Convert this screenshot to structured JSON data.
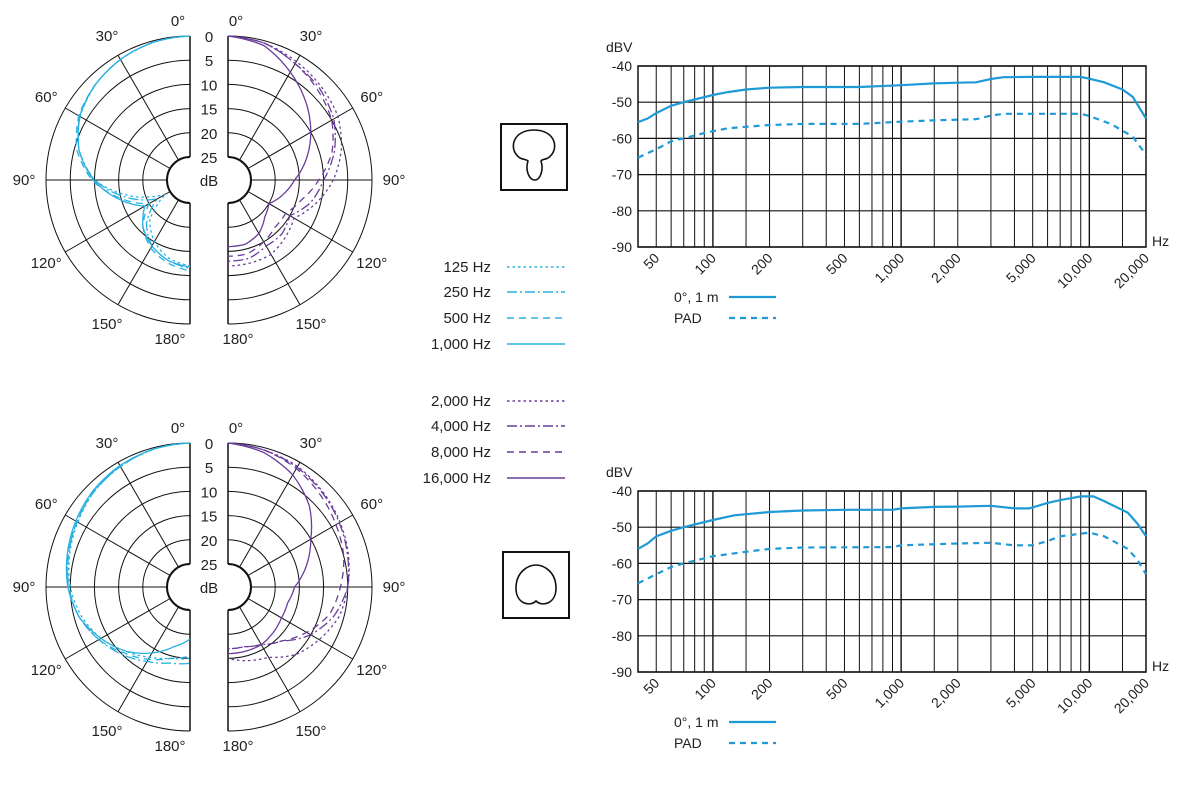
{
  "chart_data": [
    {
      "type": "polar",
      "pattern": "supercardioid",
      "angle_labels": [
        "0°",
        "30°",
        "60°",
        "90°",
        "120°",
        "150°",
        "180°"
      ],
      "radial_labels": [
        "0",
        "5",
        "10",
        "15",
        "20",
        "25"
      ],
      "radial_unit": "dB",
      "angles_deg": [
        0,
        15,
        30,
        45,
        60,
        75,
        90,
        105,
        120,
        135,
        150,
        165,
        180
      ],
      "series": [
        {
          "name": "125 Hz",
          "side": "left",
          "color": "#29b1e0",
          "style": "dotted",
          "attenuation_db": [
            0,
            0.3,
            1,
            2,
            3.5,
            6,
            10,
            17,
            24,
            18,
            15,
            13,
            12
          ]
        },
        {
          "name": "250 Hz",
          "side": "left",
          "color": "#29b1e0",
          "style": "dash-dot",
          "attenuation_db": [
            0,
            0.3,
            1,
            2,
            3.5,
            6,
            10,
            16,
            22,
            17,
            14,
            12.5,
            11.5
          ]
        },
        {
          "name": "500 Hz",
          "side": "left",
          "color": "#29b1e0",
          "style": "dashed",
          "attenuation_db": [
            0,
            0.3,
            1,
            2,
            3.2,
            5.5,
            9.5,
            15,
            20,
            16,
            13.5,
            12,
            11
          ]
        },
        {
          "name": "1,000 Hz",
          "side": "left",
          "color": "#29b1e0",
          "style": "solid",
          "attenuation_db": [
            0,
            0.3,
            1,
            2,
            3.4,
            6,
            9.8,
            14.5,
            19,
            16,
            14,
            12.5,
            11.8
          ]
        },
        {
          "name": "2,000 Hz",
          "side": "right",
          "color": "#6a3d9a",
          "style": "dotted",
          "attenuation_db": [
            0,
            0.5,
            1.5,
            2.5,
            3.5,
            5.5,
            8,
            11,
            14,
            13,
            12,
            12,
            12
          ]
        },
        {
          "name": "4,000 Hz",
          "side": "right",
          "color": "#6a3d9a",
          "style": "dash-dot",
          "attenuation_db": [
            0,
            0.5,
            2,
            3,
            4.5,
            7,
            10,
            12,
            15,
            14,
            14,
            13,
            13
          ]
        },
        {
          "name": "8,000 Hz",
          "side": "right",
          "color": "#6a3d9a",
          "style": "dashed",
          "attenuation_db": [
            0,
            0.5,
            2,
            3.5,
            5,
            7.5,
            11,
            14,
            16,
            16,
            15,
            14,
            14
          ]
        },
        {
          "name": "16,000 Hz",
          "side": "right",
          "color": "#6a3d9a",
          "style": "solid",
          "attenuation_db": [
            0,
            1,
            4,
            7,
            10,
            13,
            16,
            18,
            20,
            19,
            17,
            16,
            16
          ]
        }
      ]
    },
    {
      "type": "polar",
      "pattern": "cardioid",
      "angle_labels": [
        "0°",
        "30°",
        "60°",
        "90°",
        "120°",
        "150°",
        "180°"
      ],
      "radial_labels": [
        "0",
        "5",
        "10",
        "15",
        "20",
        "25"
      ],
      "radial_unit": "dB",
      "angles_deg": [
        0,
        15,
        30,
        45,
        60,
        75,
        90,
        105,
        120,
        135,
        150,
        165,
        180
      ],
      "series": [
        {
          "name": "125 Hz",
          "side": "left",
          "color": "#29b1e0",
          "style": "dotted",
          "attenuation_db": [
            0,
            0.3,
            1,
            1.8,
            3,
            4,
            5,
            6.5,
            8.5,
            11,
            13,
            14.5,
            15
          ]
        },
        {
          "name": "250 Hz",
          "side": "left",
          "color": "#29b1e0",
          "style": "dash-dot",
          "attenuation_db": [
            0,
            0.3,
            1,
            1.8,
            2.8,
            3.8,
            4.7,
            6,
            8,
            10,
            12,
            13.5,
            14
          ]
        },
        {
          "name": "500 Hz",
          "side": "left",
          "color": "#29b1e0",
          "style": "dashed",
          "attenuation_db": [
            0,
            0.3,
            1,
            1.7,
            2.8,
            3.7,
            4.6,
            6,
            8,
            10.5,
            12.5,
            14.5,
            15.5
          ]
        },
        {
          "name": "1,000 Hz",
          "side": "left",
          "color": "#29b1e0",
          "style": "solid",
          "attenuation_db": [
            0,
            0.3,
            0.8,
            1.5,
            2.5,
            3.5,
            4.5,
            6,
            8.5,
            11,
            14,
            17,
            19
          ]
        },
        {
          "name": "2,000 Hz",
          "side": "right",
          "color": "#6a3d9a",
          "style": "dotted",
          "attenuation_db": [
            0,
            0.5,
            1,
            2,
            3,
            4,
            5,
            6,
            8,
            10,
            13,
            14,
            15
          ]
        },
        {
          "name": "4,000 Hz",
          "side": "right",
          "color": "#6a3d9a",
          "style": "dash-dot",
          "attenuation_db": [
            0,
            0.5,
            1.2,
            2.2,
            3.2,
            4.2,
            5,
            7,
            10,
            14,
            16,
            17,
            17
          ]
        },
        {
          "name": "8,000 Hz",
          "side": "right",
          "color": "#6a3d9a",
          "style": "dashed",
          "attenuation_db": [
            0,
            0.5,
            1.5,
            2.8,
            4,
            5,
            6.5,
            8,
            11,
            14,
            16,
            17,
            17
          ]
        },
        {
          "name": "16,000 Hz",
          "side": "right",
          "color": "#6a3d9a",
          "style": "solid",
          "attenuation_db": [
            0,
            1,
            3,
            6,
            10,
            13,
            16,
            17,
            17,
            16.5,
            16,
            16,
            16
          ]
        }
      ]
    },
    {
      "type": "line",
      "pattern": "supercardioid",
      "ylabel": "dBV",
      "xlabel": "Hz",
      "xscale": "log",
      "xlim": [
        40,
        20000
      ],
      "ylim": [
        -90,
        -40
      ],
      "yticks": [
        "-40",
        "-50",
        "-60",
        "-70",
        "-80",
        "-90"
      ],
      "xticks": [
        50,
        100,
        200,
        500,
        1000,
        2000,
        5000,
        10000,
        20000
      ],
      "xtick_labels": [
        "50",
        "100",
        "200",
        "500",
        "1,000",
        "2,000",
        "5,000",
        "10,000",
        "20,000"
      ],
      "grid": true,
      "series": [
        {
          "name": "0°, 1 m",
          "color": "#1f9ad6",
          "style": "solid",
          "points": [
            [
              40,
              -55.5
            ],
            [
              45,
              -54.5
            ],
            [
              50,
              -53
            ],
            [
              60,
              -51
            ],
            [
              70,
              -50
            ],
            [
              100,
              -48
            ],
            [
              120,
              -47.2
            ],
            [
              150,
              -46.5
            ],
            [
              200,
              -46
            ],
            [
              300,
              -45.8
            ],
            [
              600,
              -45.8
            ],
            [
              1000,
              -45.3
            ],
            [
              1500,
              -44.8
            ],
            [
              2000,
              -44.6
            ],
            [
              2500,
              -44.5
            ],
            [
              3000,
              -43.6
            ],
            [
              3500,
              -43.1
            ],
            [
              5000,
              -43
            ],
            [
              9000,
              -43
            ],
            [
              10000,
              -43.5
            ],
            [
              12000,
              -44.5
            ],
            [
              15000,
              -46.5
            ],
            [
              17000,
              -48.5
            ],
            [
              20000,
              -54.5
            ]
          ]
        },
        {
          "name": "PAD",
          "color": "#1f9ad6",
          "style": "dashed",
          "points": [
            [
              40,
              -65.3
            ],
            [
              50,
              -63
            ],
            [
              60,
              -60.8
            ],
            [
              70,
              -60
            ],
            [
              90,
              -58.5
            ],
            [
              100,
              -58
            ],
            [
              120,
              -57.2
            ],
            [
              150,
              -56.8
            ],
            [
              200,
              -56.3
            ],
            [
              300,
              -56
            ],
            [
              600,
              -56
            ],
            [
              1000,
              -55.4
            ],
            [
              1500,
              -55
            ],
            [
              2500,
              -54.7
            ],
            [
              3000,
              -53.7
            ],
            [
              3500,
              -53.2
            ],
            [
              9000,
              -53.2
            ],
            [
              10000,
              -53.8
            ],
            [
              13000,
              -56
            ],
            [
              17000,
              -59.5
            ],
            [
              20000,
              -64.5
            ]
          ]
        }
      ]
    },
    {
      "type": "line",
      "pattern": "cardioid",
      "ylabel": "dBV",
      "xlabel": "Hz",
      "xscale": "log",
      "xlim": [
        40,
        20000
      ],
      "ylim": [
        -90,
        -40
      ],
      "yticks": [
        "-40",
        "-50",
        "-60",
        "-70",
        "-80",
        "-90"
      ],
      "xticks": [
        50,
        100,
        200,
        500,
        1000,
        2000,
        5000,
        10000,
        20000
      ],
      "xtick_labels": [
        "50",
        "100",
        "200",
        "500",
        "1,000",
        "2,000",
        "5,000",
        "10,000",
        "20,000"
      ],
      "grid": true,
      "series": [
        {
          "name": "0°, 1 m",
          "color": "#1f9ad6",
          "style": "solid",
          "points": [
            [
              40,
              -56
            ],
            [
              45,
              -54.5
            ],
            [
              50,
              -52.5
            ],
            [
              60,
              -51
            ],
            [
              70,
              -50
            ],
            [
              100,
              -48
            ],
            [
              130,
              -46.7
            ],
            [
              200,
              -45.8
            ],
            [
              300,
              -45.4
            ],
            [
              500,
              -45.2
            ],
            [
              900,
              -45.2
            ],
            [
              1000,
              -44.8
            ],
            [
              1500,
              -44.4
            ],
            [
              2000,
              -44.3
            ],
            [
              3000,
              -44.1
            ],
            [
              4000,
              -44.8
            ],
            [
              4800,
              -44.8
            ],
            [
              6000,
              -43.3
            ],
            [
              7000,
              -42.5
            ],
            [
              8000,
              -42
            ],
            [
              9000,
              -41.5
            ],
            [
              10500,
              -41.5
            ],
            [
              12000,
              -42.8
            ],
            [
              16000,
              -46
            ],
            [
              18000,
              -49
            ],
            [
              20000,
              -52.5
            ]
          ]
        },
        {
          "name": "PAD",
          "color": "#1f9ad6",
          "style": "dashed",
          "points": [
            [
              40,
              -65.5
            ],
            [
              50,
              -63
            ],
            [
              60,
              -61
            ],
            [
              70,
              -60
            ],
            [
              100,
              -58
            ],
            [
              150,
              -56.8
            ],
            [
              200,
              -56
            ],
            [
              300,
              -55.6
            ],
            [
              900,
              -55.5
            ],
            [
              1000,
              -55
            ],
            [
              2000,
              -54.5
            ],
            [
              3000,
              -54.3
            ],
            [
              4000,
              -55
            ],
            [
              5000,
              -55
            ],
            [
              6000,
              -53.8
            ],
            [
              7000,
              -52.5
            ],
            [
              10000,
              -51.5
            ],
            [
              12000,
              -52.5
            ],
            [
              16000,
              -56
            ],
            [
              18000,
              -59
            ],
            [
              20000,
              -63
            ]
          ]
        }
      ]
    }
  ],
  "polar_legend": [
    {
      "label": "125 Hz",
      "color": "#29b1e0",
      "style": "dotted"
    },
    {
      "label": "250 Hz",
      "color": "#29b1e0",
      "style": "dash-dot"
    },
    {
      "label": "500 Hz",
      "color": "#29b1e0",
      "style": "dashed"
    },
    {
      "label": "1,000 Hz",
      "color": "#29b1e0",
      "style": "solid"
    },
    {
      "label": "2,000 Hz",
      "color": "#6a3d9a",
      "style": "dotted"
    },
    {
      "label": "4,000 Hz",
      "color": "#6a3d9a",
      "style": "dash-dot"
    },
    {
      "label": "8,000 Hz",
      "color": "#6a3d9a",
      "style": "dashed"
    },
    {
      "label": "16,000 Hz",
      "color": "#6a3d9a",
      "style": "solid"
    }
  ],
  "icons": [
    "supercardioid-pattern-icon",
    "cardioid-pattern-icon"
  ]
}
